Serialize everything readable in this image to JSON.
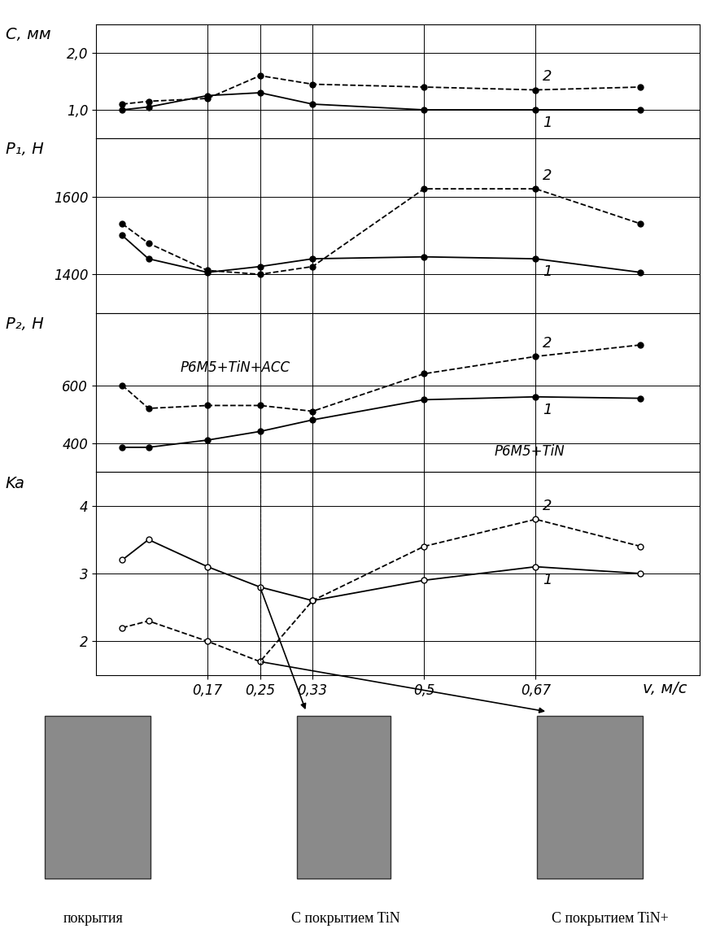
{
  "chart_data": [
    {
      "type": "line",
      "ylabel": "C, мм",
      "x": [
        0.04,
        0.08,
        0.17,
        0.25,
        0.33,
        0.5,
        0.67,
        0.83
      ],
      "xlim": [
        0,
        0.92
      ],
      "xticks": [
        {
          "value": 0.17,
          "label": "0,17"
        },
        {
          "value": 0.25,
          "label": "0,25"
        },
        {
          "value": 0.33,
          "label": "0,33"
        },
        {
          "value": 0.5,
          "label": "0,5"
        },
        {
          "value": 0.67,
          "label": "0,67"
        }
      ],
      "ylim": [
        0.5,
        2.5
      ],
      "yticks": [
        {
          "value": 1.0,
          "label": "1,0"
        },
        {
          "value": 2.0,
          "label": "2,0"
        }
      ],
      "grid": true,
      "tick_labels": "y",
      "series": [
        {
          "name": "1",
          "color": "#000000",
          "line_style": "solid",
          "marker": "filled_circle",
          "values": [
            1.0,
            1.05,
            1.25,
            1.3,
            1.1,
            1.0,
            1.0,
            1.0
          ]
        },
        {
          "name": "2",
          "color": "#000000",
          "line_style": "dashed",
          "marker": "filled_circle",
          "values": [
            1.1,
            1.15,
            1.2,
            1.6,
            1.45,
            1.4,
            1.35,
            1.4
          ]
        }
      ]
    },
    {
      "type": "line",
      "ylabel": "P₁, Н",
      "x": [
        0.04,
        0.08,
        0.17,
        0.25,
        0.33,
        0.5,
        0.67,
        0.83
      ],
      "xlim": [
        0,
        0.92
      ],
      "xticks": [
        {
          "value": 0.17,
          "label": "0,17"
        },
        {
          "value": 0.25,
          "label": "0,25"
        },
        {
          "value": 0.33,
          "label": "0,33"
        },
        {
          "value": 0.5,
          "label": "0,5"
        },
        {
          "value": 0.67,
          "label": "0,67"
        }
      ],
      "ylim": [
        1300,
        1750
      ],
      "yticks": [
        1400,
        1600
      ],
      "grid": true,
      "tick_labels": "y",
      "series": [
        {
          "name": "1",
          "color": "#000000",
          "line_style": "solid",
          "marker": "filled_circle",
          "values": [
            1500,
            1440,
            1405,
            1420,
            1440,
            1445,
            1440,
            1405
          ]
        },
        {
          "name": "2",
          "color": "#000000",
          "line_style": "dashed",
          "marker": "filled_circle",
          "values": [
            1530,
            1480,
            1410,
            1400,
            1420,
            1620,
            1620,
            1530
          ]
        }
      ]
    },
    {
      "type": "line",
      "ylabel": "P₂, Н",
      "x": [
        0.04,
        0.08,
        0.17,
        0.25,
        0.33,
        0.5,
        0.67,
        0.83
      ],
      "xlim": [
        0,
        0.92
      ],
      "xticks": [
        {
          "value": 0.17,
          "label": "0,17"
        },
        {
          "value": 0.25,
          "label": "0,25"
        },
        {
          "value": 0.33,
          "label": "0,33"
        },
        {
          "value": 0.5,
          "label": "0,5"
        },
        {
          "value": 0.67,
          "label": "0,67"
        }
      ],
      "ylim": [
        300,
        850
      ],
      "yticks": [
        400,
        600
      ],
      "grid": true,
      "tick_labels": "y",
      "annotations": [
        "Р6М5+TiN+АСС",
        "Р6М5+TiN"
      ],
      "series": [
        {
          "name": "1",
          "color": "#000000",
          "line_style": "solid",
          "marker": "filled_circle",
          "values": [
            385,
            385,
            410,
            440,
            480,
            550,
            560,
            555
          ]
        },
        {
          "name": "2",
          "color": "#000000",
          "line_style": "dashed",
          "marker": "filled_circle",
          "values": [
            600,
            520,
            530,
            530,
            510,
            640,
            700,
            740
          ]
        }
      ]
    },
    {
      "type": "line",
      "ylabel": "Ka",
      "xlabel": "v, м/с",
      "x": [
        0.04,
        0.08,
        0.17,
        0.25,
        0.33,
        0.5,
        0.67,
        0.83
      ],
      "xlim": [
        0,
        0.92
      ],
      "xticks": [
        {
          "value": 0.17,
          "label": "0,17"
        },
        {
          "value": 0.25,
          "label": "0,25"
        },
        {
          "value": 0.33,
          "label": "0,33"
        },
        {
          "value": 0.5,
          "label": "0,5"
        },
        {
          "value": 0.67,
          "label": "0,67"
        }
      ],
      "ylim": [
        1.5,
        4.5
      ],
      "yticks": [
        2,
        3,
        4
      ],
      "grid": true,
      "series": [
        {
          "name": "1",
          "color": "#000000",
          "line_style": "solid",
          "marker": "open_circle",
          "values": [
            3.2,
            3.5,
            3.1,
            2.8,
            2.6,
            2.9,
            3.1,
            3.0
          ]
        },
        {
          "name": "2",
          "color": "#000000",
          "line_style": "dashed",
          "marker": "open_circle",
          "values": [
            2.2,
            2.3,
            2.0,
            1.7,
            2.6,
            3.4,
            3.8,
            3.4
          ]
        }
      ]
    }
  ],
  "photos": [
    {
      "caption": "покрытия"
    },
    {
      "caption": "С покрытием TiN"
    },
    {
      "caption": "С покрытием TiN+"
    }
  ]
}
